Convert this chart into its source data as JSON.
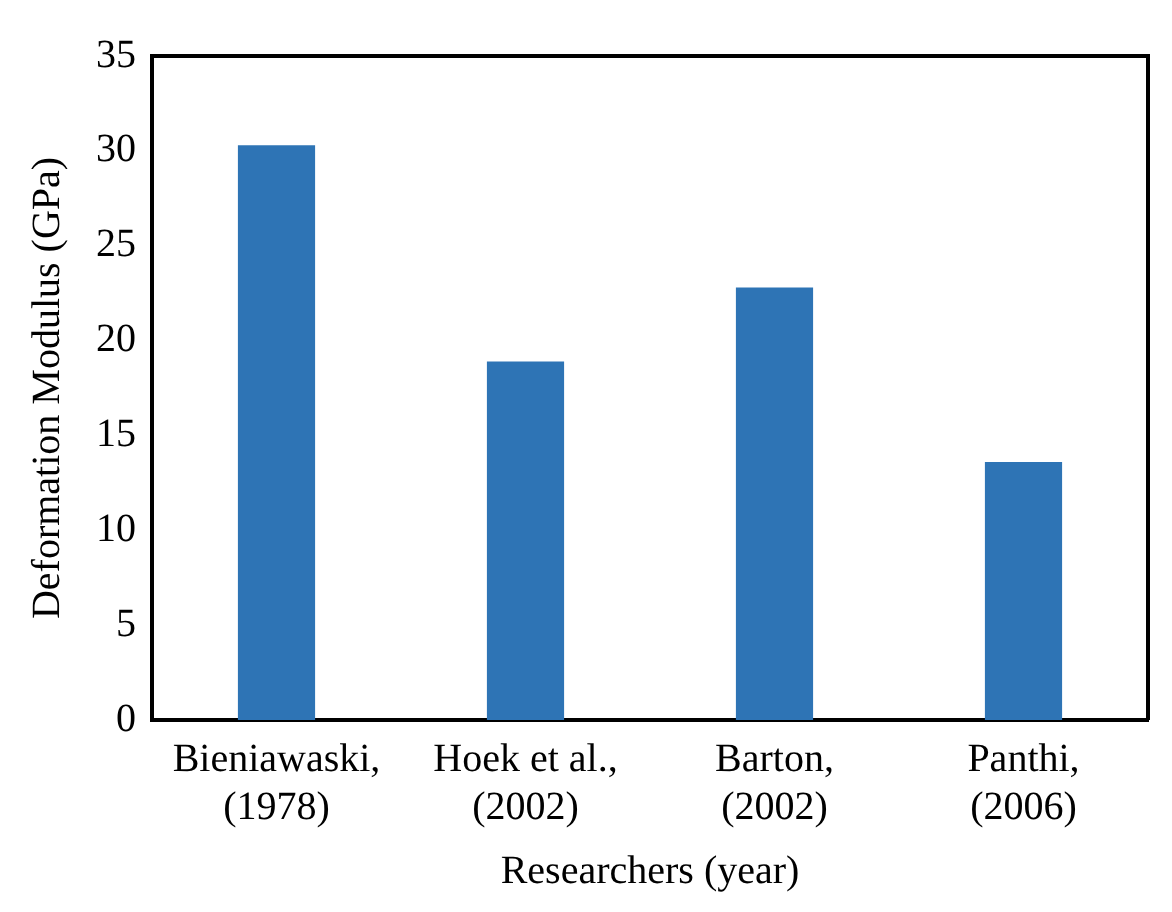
{
  "chart_data": {
    "type": "bar",
    "xlabel": "Researchers (year)",
    "ylabel": "Deformation Modulus (GPa)",
    "categories": [
      "Bieniawaski,\n(1978)",
      "Hoek et al.,\n(2002)",
      "Barton,\n(2002)",
      "Panthi,\n(2006)"
    ],
    "values": [
      30.3,
      18.9,
      22.8,
      13.6
    ],
    "color": "#2e74b5",
    "ylim": [
      0,
      35
    ],
    "yticks": [
      0,
      5,
      10,
      15,
      20,
      25,
      30,
      35
    ],
    "grid": false,
    "legend": false
  }
}
